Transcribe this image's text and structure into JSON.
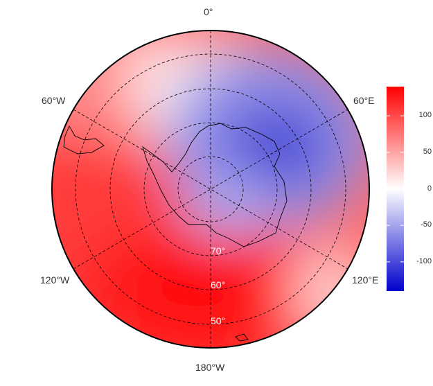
{
  "map": {
    "meridian_labels": {
      "top": "0°",
      "upper_left": "60°W",
      "upper_right": "60°E",
      "lower_left": "120°W",
      "lower_right": "120°E",
      "bottom": "180°W"
    },
    "latitude_labels": {
      "lat70": "70°",
      "lat60": "60°",
      "lat50": "50°"
    },
    "field_description": "stereographic south-polar anomaly field, red positive over the Pacific/Amundsen–Bellingshausen sector, blue negative over East Antarctica",
    "colors": {
      "positive_max": "#ff0000",
      "neutral": "#ffffff",
      "negative_min": "#0000cc"
    }
  },
  "colorbar": {
    "range": [
      -140,
      140
    ],
    "ticks": [
      {
        "value": 100,
        "label": "100"
      },
      {
        "value": 50,
        "label": "50"
      },
      {
        "value": 0,
        "label": "0"
      },
      {
        "value": -50,
        "label": "-50"
      },
      {
        "value": -100,
        "label": "-100"
      }
    ]
  }
}
